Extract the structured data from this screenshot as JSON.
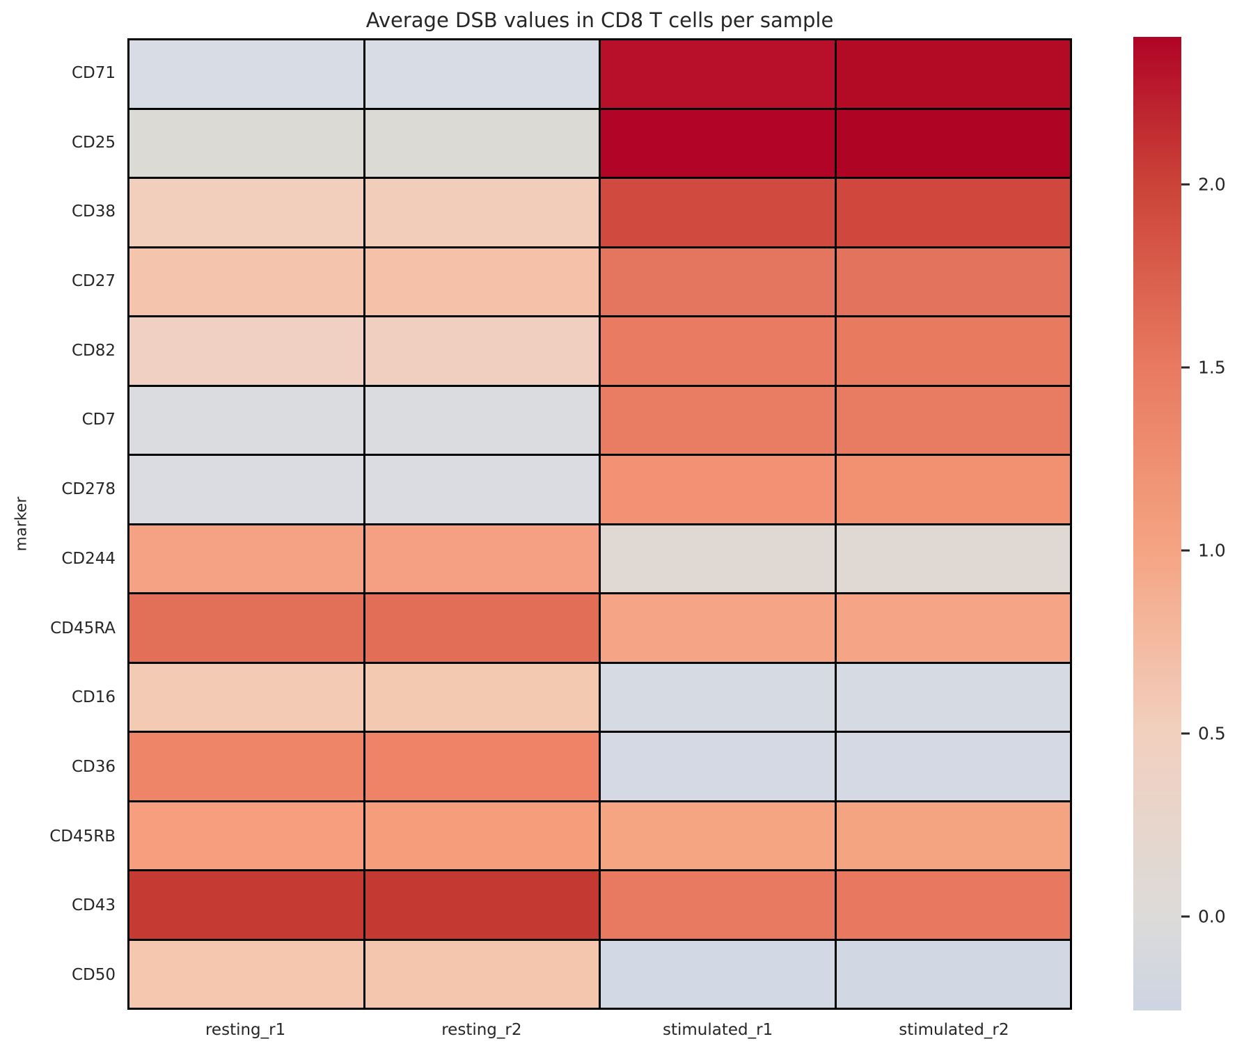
{
  "title": "Average DSB values in CD8 T cells per sample",
  "axes": {
    "ylabel": "marker",
    "xlabel": ""
  },
  "chart_data": {
    "type": "heatmap",
    "title": "Average DSB values in CD8 T cells per sample",
    "xlabel": "",
    "ylabel": "marker",
    "x_categories": [
      "resting_r1",
      "resting_r2",
      "stimulated_r1",
      "stimulated_r2"
    ],
    "y_categories": [
      "CD71",
      "CD25",
      "CD38",
      "CD27",
      "CD82",
      "CD7",
      "CD278",
      "CD244",
      "CD45RA",
      "CD16",
      "CD36",
      "CD45RB",
      "CD43",
      "CD50"
    ],
    "series": [
      {
        "name": "CD71",
        "values": [
          -0.15,
          -0.15,
          2.3,
          2.35
        ],
        "colors": [
          "#d7dce5",
          "#d7dce5",
          "#b8102a",
          "#b30a26"
        ]
      },
      {
        "name": "CD25",
        "values": [
          0.05,
          0.05,
          2.4,
          2.4
        ],
        "colors": [
          "#dcdad5",
          "#dcdad5",
          "#b10426",
          "#b00425"
        ]
      },
      {
        "name": "CD38",
        "values": [
          0.6,
          0.6,
          2.0,
          2.0
        ],
        "colors": [
          "#f2cfbd",
          "#f2cdba",
          "#d04a40",
          "#cf473d"
        ]
      },
      {
        "name": "CD27",
        "values": [
          0.75,
          0.75,
          1.55,
          1.55
        ],
        "colors": [
          "#f4c4ac",
          "#f5c2a9",
          "#e4755f",
          "#e4735d"
        ]
      },
      {
        "name": "CD82",
        "values": [
          0.55,
          0.55,
          1.45,
          1.45
        ],
        "colors": [
          "#f0d0c2",
          "#f0cfc0",
          "#e87b61",
          "#e87a60"
        ]
      },
      {
        "name": "CD7",
        "values": [
          -0.05,
          -0.05,
          1.45,
          1.45
        ],
        "colors": [
          "#dbdcdf",
          "#dbdcdf",
          "#e87d63",
          "#e87c62"
        ]
      },
      {
        "name": "CD278",
        "values": [
          -0.1,
          -0.1,
          1.25,
          1.25
        ],
        "colors": [
          "#dadce2",
          "#dadce2",
          "#f29173",
          "#f29072"
        ]
      },
      {
        "name": "CD244",
        "values": [
          1.1,
          1.1,
          0.1,
          0.1
        ],
        "colors": [
          "#f5a184",
          "#f5a083",
          "#e0d8d3",
          "#e0d8d3"
        ]
      },
      {
        "name": "CD45RA",
        "values": [
          1.6,
          1.6,
          1.05,
          1.05
        ],
        "colors": [
          "#e26f58",
          "#e26e57",
          "#f5a586",
          "#f5a485"
        ]
      },
      {
        "name": "CD16",
        "values": [
          0.65,
          0.65,
          -0.15,
          -0.15
        ],
        "colors": [
          "#f3cab4",
          "#f3c9b2",
          "#d6dae3",
          "#d6dae3"
        ]
      },
      {
        "name": "CD36",
        "values": [
          1.35,
          1.35,
          -0.2,
          -0.2
        ],
        "colors": [
          "#ee8468",
          "#ee8367",
          "#d5d9e3",
          "#d5d9e3"
        ]
      },
      {
        "name": "CD45RB",
        "values": [
          1.15,
          1.15,
          1.05,
          1.05
        ],
        "colors": [
          "#f69e7d",
          "#f69d7c",
          "#f5a582",
          "#f5a481"
        ]
      },
      {
        "name": "CD43",
        "values": [
          2.1,
          2.1,
          1.5,
          1.5
        ],
        "colors": [
          "#c53a33",
          "#c43932",
          "#e87a61",
          "#e87960"
        ]
      },
      {
        "name": "CD50",
        "values": [
          0.7,
          0.7,
          -0.25,
          -0.25
        ],
        "colors": [
          "#f4c7ae",
          "#f4c6ad",
          "#d2d9e5",
          "#d1d8e4"
        ]
      }
    ],
    "grid": "on",
    "grid_line_color": "#000000",
    "colormap": "coolwarm",
    "colorbar": {
      "position": "right",
      "vmin": -0.25,
      "vmax": 2.4,
      "ticks": [
        2.0,
        1.5,
        1.0,
        0.5,
        0.0
      ],
      "tick_labels": [
        "2.0",
        "1.5",
        "1.0",
        "0.5",
        "0.0"
      ],
      "tick_percents": [
        15.15,
        33.95,
        52.75,
        71.55,
        90.35
      ],
      "gradient_stops": [
        {
          "pct": 0,
          "color": "#b00426"
        },
        {
          "pct": 15.15,
          "color": "#cb4338"
        },
        {
          "pct": 33.95,
          "color": "#e87a61"
        },
        {
          "pct": 52.75,
          "color": "#f5a483"
        },
        {
          "pct": 71.55,
          "color": "#f2d0bf"
        },
        {
          "pct": 90.35,
          "color": "#dcdbd9"
        },
        {
          "pct": 100,
          "color": "#cdd4e2"
        }
      ]
    }
  },
  "style": {
    "background": "#ffffff",
    "text_color": "#262626",
    "cell_border_color": "#000000"
  }
}
